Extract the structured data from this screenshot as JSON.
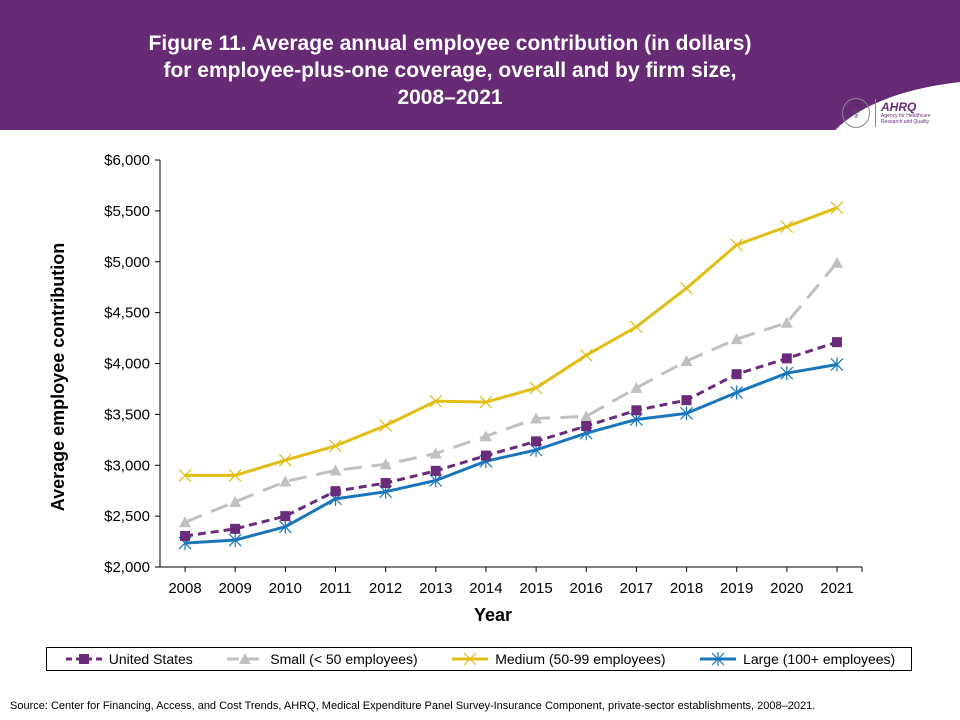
{
  "header": {
    "title": "Figure 11. Average annual employee contribution (in dollars)\nfor employee-plus-one coverage, overall and by firm size,\n2008–2021",
    "logo": {
      "hhs_icon": "hhs-eagle-icon",
      "name": "AHRQ",
      "subtitle": "Agency for Healthcare\nResearch and Quality"
    }
  },
  "chart_data": {
    "type": "line",
    "title": "Figure 11. Average annual employee contribution (in dollars) for employee-plus-one coverage, overall and by firm size, 2008–2021",
    "xlabel": "Year",
    "ylabel": "Average employee contribution",
    "x": [
      "2008",
      "2009",
      "2010",
      "2011",
      "2012",
      "2013",
      "2014",
      "2015",
      "2016",
      "2017",
      "2018",
      "2019",
      "2020",
      "2021"
    ],
    "ylim": [
      2000,
      6000
    ],
    "yticks": [
      2000,
      2500,
      3000,
      3500,
      4000,
      4500,
      5000,
      5500,
      6000
    ],
    "ytick_labels": [
      "$2,000",
      "$2,500",
      "$3,000",
      "$3,500",
      "$4,000",
      "$4,500",
      "$5,000",
      "$5,500",
      "$6,000"
    ],
    "grid": false,
    "legend_position": "bottom",
    "series": [
      {
        "name": "United States",
        "color": "#6a2c7a",
        "dash": "dashed",
        "marker": "square",
        "values": [
          2305,
          2375,
          2500,
          2745,
          2825,
          2945,
          3095,
          3235,
          3385,
          3540,
          3640,
          3895,
          4050,
          4210
        ]
      },
      {
        "name": "Small (< 50 employees)",
        "color": "#c0c0c0",
        "dash": "long-dash",
        "marker": "triangle",
        "values": [
          2440,
          2640,
          2840,
          2950,
          3010,
          3115,
          3285,
          3460,
          3480,
          3760,
          4025,
          4240,
          4400,
          4990
        ]
      },
      {
        "name": "Medium (50-99 employees)",
        "color": "#e2bd14",
        "dash": "solid",
        "marker": "x",
        "values": [
          2900,
          2900,
          3050,
          3190,
          3390,
          3630,
          3620,
          3760,
          4080,
          4360,
          4740,
          5165,
          5345,
          5530
        ]
      },
      {
        "name": "Large (100+ employees)",
        "color": "#1a76bb",
        "dash": "solid",
        "marker": "asterisk",
        "values": [
          2235,
          2265,
          2395,
          2670,
          2740,
          2850,
          3040,
          3150,
          3315,
          3450,
          3510,
          3715,
          3905,
          3990
        ]
      }
    ]
  },
  "source": "Source: Center for Financing, Access, and Cost Trends, AHRQ, Medical Expenditure Panel Survey-Insurance Component, private-sector establishments, 2008–2021."
}
